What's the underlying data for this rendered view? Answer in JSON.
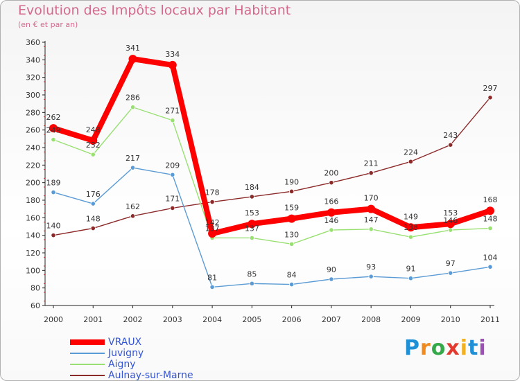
{
  "header": {
    "title": "Evolution des Impôts locaux par Habitant",
    "subtitle": "(en € et par an)"
  },
  "logo": {
    "letters": [
      "P",
      "r",
      "o",
      "x",
      "i",
      "t",
      "i"
    ]
  },
  "chart_data": {
    "type": "line",
    "title": "Evolution des Impôts locaux par Habitant",
    "subtitle": "(en € et par an)",
    "xlabel": "",
    "ylabel": "",
    "ylim": [
      60,
      360
    ],
    "yticks": [
      60,
      80,
      100,
      120,
      140,
      160,
      180,
      200,
      220,
      240,
      260,
      280,
      300,
      320,
      340,
      360
    ],
    "grid": false,
    "legend_position": "bottom-left",
    "categories": [
      "2000",
      "2001",
      "2002",
      "2003",
      "2004",
      "2005",
      "2006",
      "2007",
      "2008",
      "2009",
      "2010",
      "2011"
    ],
    "series": [
      {
        "name": "VRAUX",
        "color": "#ff0000",
        "values": [
          262,
          248,
          341,
          334,
          142,
          153,
          159,
          166,
          170,
          149,
          153,
          168
        ]
      },
      {
        "name": "Juvigny",
        "color": "#5b9bd5",
        "values": [
          189,
          176,
          217,
          209,
          81,
          85,
          84,
          90,
          93,
          91,
          97,
          104
        ]
      },
      {
        "name": "Aigny",
        "color": "#99e072",
        "values": [
          249,
          232,
          286,
          271,
          137,
          137,
          130,
          146,
          147,
          138,
          146,
          148
        ]
      },
      {
        "name": "Aulnay-sur-Marne",
        "color": "#8c2a2a",
        "values": [
          140,
          148,
          162,
          171,
          178,
          184,
          190,
          200,
          211,
          224,
          243,
          297
        ]
      }
    ]
  }
}
